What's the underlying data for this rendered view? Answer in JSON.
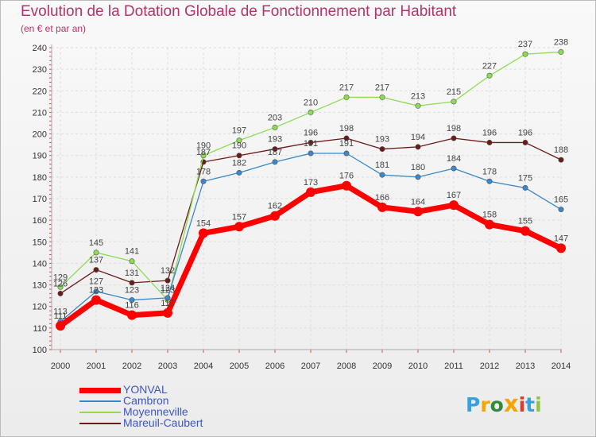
{
  "chart_data": {
    "type": "line",
    "title": "Evolution de la Dotation Globale de Fonctionnement par Habitant",
    "subtitle": "(en € et par an)",
    "x": [
      "2000",
      "2001",
      "2002",
      "2003",
      "2004",
      "2005",
      "2006",
      "2007",
      "2008",
      "2009",
      "2010",
      "2011",
      "2012",
      "2013",
      "2014"
    ],
    "ylim": [
      100,
      240
    ],
    "yticks": [
      100,
      110,
      120,
      130,
      140,
      150,
      160,
      170,
      180,
      190,
      200,
      210,
      220,
      230,
      240
    ],
    "grid": true,
    "legend_position": "bottom-left",
    "series": [
      {
        "name": "YONVAL",
        "color": "#ff0000",
        "values": [
          111,
          123,
          116,
          117,
          154,
          157,
          162,
          173,
          176,
          166,
          164,
          167,
          158,
          155,
          147
        ]
      },
      {
        "name": "Cambron",
        "color": "#3b87c8",
        "values": [
          113,
          127,
          123,
          124,
          178,
          182,
          187,
          191,
          191,
          181,
          180,
          184,
          178,
          175,
          165
        ]
      },
      {
        "name": "Moyenneville",
        "color": "#8ddc55",
        "values": [
          129,
          145,
          141,
          123,
          190,
          197,
          203,
          210,
          217,
          217,
          213,
          215,
          227,
          237,
          238
        ]
      },
      {
        "name": "Mareuil-Caubert",
        "color": "#6b1a1a",
        "values": [
          126,
          137,
          131,
          132,
          187,
          190,
          193,
          196,
          198,
          193,
          194,
          198,
          196,
          196,
          188
        ]
      }
    ]
  },
  "logo": {
    "text": "Proxiti"
  }
}
